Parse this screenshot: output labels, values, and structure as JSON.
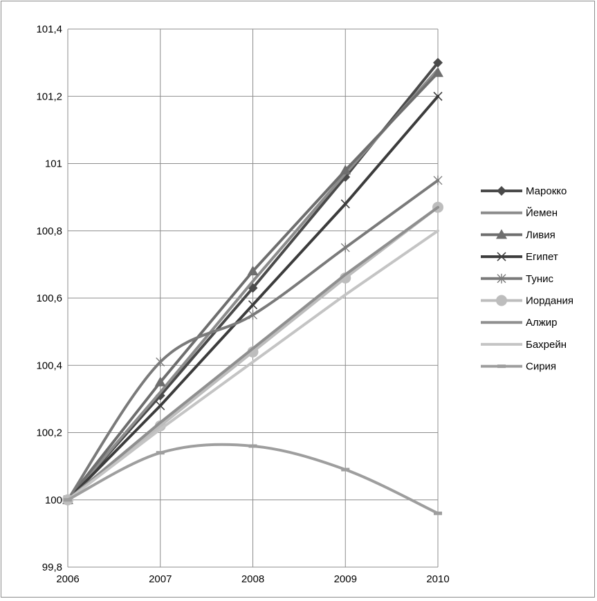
{
  "chart_data": {
    "type": "line",
    "title": "",
    "xlabel": "",
    "ylabel": "",
    "x": [
      2006,
      2007,
      2008,
      2009,
      2010
    ],
    "x_tick_labels": [
      "2006",
      "2007",
      "2008",
      "2009",
      "2010"
    ],
    "ylim": [
      99.8,
      101.4
    ],
    "y_ticks": [
      99.8,
      100,
      100.2,
      100.4,
      100.6,
      100.8,
      101,
      101.2,
      101.4
    ],
    "y_tick_labels": [
      "99,8",
      "100",
      "100,2",
      "100,4",
      "100,6",
      "100,8",
      "101",
      "101,2",
      "101,4"
    ],
    "grid": true,
    "legend_position": "right",
    "series": [
      {
        "name": "Марокко",
        "values": [
          100,
          100.31,
          100.63,
          100.96,
          101.3
        ],
        "color": "#4a4a4a",
        "marker": "diamond",
        "smooth": false
      },
      {
        "name": "Йемен",
        "values": [
          100,
          100.32,
          100.65,
          100.97,
          101.28
        ],
        "color": "#8c8c8c",
        "marker": "none",
        "smooth": false
      },
      {
        "name": "Ливия",
        "values": [
          100,
          100.35,
          100.68,
          100.98,
          101.27
        ],
        "color": "#6e6e6e",
        "marker": "triangle",
        "smooth": false
      },
      {
        "name": "Египет",
        "values": [
          100,
          100.28,
          100.58,
          100.88,
          101.2
        ],
        "color": "#3c3c3c",
        "marker": "x",
        "smooth": false
      },
      {
        "name": "Тунис",
        "values": [
          100,
          100.41,
          100.55,
          100.75,
          100.95
        ],
        "color": "#7a7a7a",
        "marker": "star",
        "smooth": true
      },
      {
        "name": "Иордания",
        "values": [
          100,
          100.22,
          100.44,
          100.66,
          100.87
        ],
        "color": "#bdbdbd",
        "marker": "circle",
        "smooth": false
      },
      {
        "name": "Алжир",
        "values": [
          100,
          100.23,
          100.45,
          100.67,
          100.87
        ],
        "color": "#8f8f8f",
        "marker": "none",
        "smooth": false
      },
      {
        "name": "Бахрейн",
        "values": [
          100,
          100.21,
          100.41,
          100.61,
          100.8
        ],
        "color": "#c4c4c4",
        "marker": "none",
        "smooth": false
      },
      {
        "name": "Сирия",
        "values": [
          100,
          100.14,
          100.16,
          100.09,
          99.96
        ],
        "color": "#9e9e9e",
        "marker": "dash",
        "smooth": true
      }
    ]
  }
}
